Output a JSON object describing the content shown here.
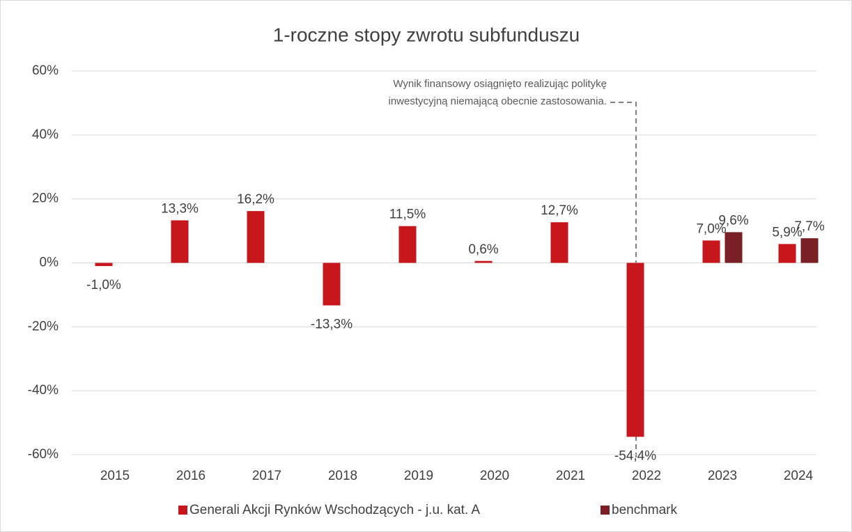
{
  "chart_data": {
    "type": "bar",
    "title": "1-roczne stopy zwrotu subfunduszu",
    "annotation": [
      "Wynik finansowy osiągnięto realizując politykę",
      "inwestycyjną niemającą obecnie zastosowania."
    ],
    "categories": [
      "2015",
      "2016",
      "2017",
      "2018",
      "2019",
      "2020",
      "2021",
      "2022",
      "2023",
      "2024"
    ],
    "series": [
      {
        "name": "Generali Akcji Rynków Wschodzących - j.u. kat. A",
        "color": "#c8161d",
        "values": [
          -1.0,
          13.3,
          16.2,
          -13.3,
          11.5,
          0.6,
          12.7,
          -54.4,
          7.0,
          5.9
        ],
        "value_labels": [
          "-1,0%",
          "13,3%",
          "16,2%",
          "-13,3%",
          "11,5%",
          "0,6%",
          "12,7%",
          "-54,4%",
          "7,0%",
          "5,9%"
        ]
      },
      {
        "name": "benchmark",
        "color": "#7b1f26",
        "values": [
          null,
          null,
          null,
          null,
          null,
          null,
          null,
          null,
          9.6,
          7.7
        ],
        "value_labels": [
          null,
          null,
          null,
          null,
          null,
          null,
          null,
          null,
          "9,6%",
          "7,7%"
        ]
      }
    ],
    "ylim": [
      -60,
      60
    ],
    "yticks": [
      {
        "value": -60,
        "label": "-60%"
      },
      {
        "value": -40,
        "label": "-40%"
      },
      {
        "value": -20,
        "label": "-20%"
      },
      {
        "value": 0,
        "label": "0%"
      },
      {
        "value": 20,
        "label": "20%"
      },
      {
        "value": 40,
        "label": "40%"
      },
      {
        "value": 60,
        "label": "60%"
      }
    ],
    "grid": true
  }
}
